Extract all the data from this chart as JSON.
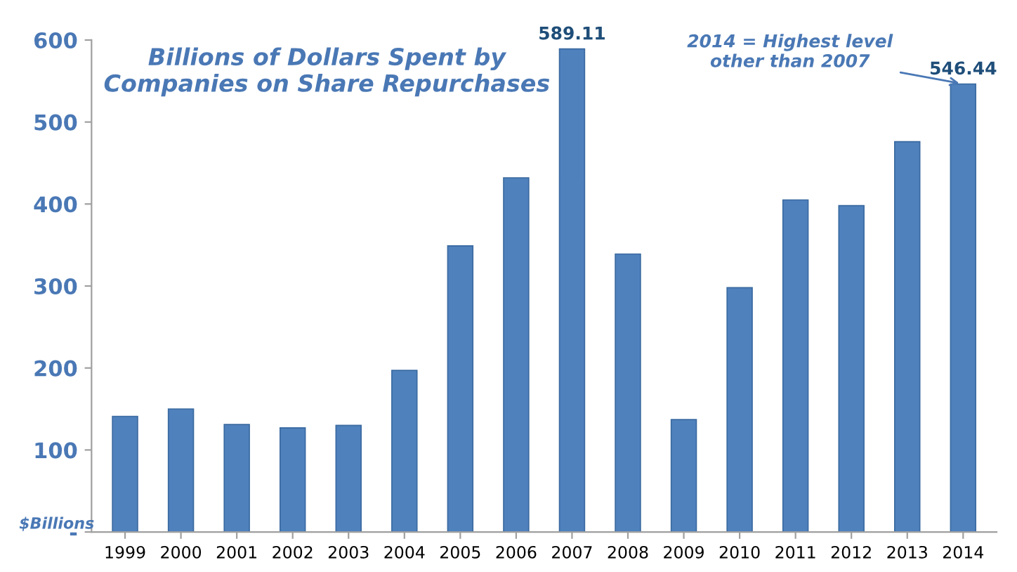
{
  "chart_data": {
    "type": "bar",
    "title": "Billions of Dollars Spent by\nCompanies on Share Repurchases",
    "ylabel": "$Billions",
    "categories": [
      "1999",
      "2000",
      "2001",
      "2002",
      "2003",
      "2004",
      "2005",
      "2006",
      "2007",
      "2008",
      "2009",
      "2010",
      "2011",
      "2012",
      "2013",
      "2014"
    ],
    "values": [
      141,
      150,
      131,
      127,
      130,
      197,
      349,
      432,
      589.11,
      339,
      137,
      298,
      405,
      398,
      476,
      546.44
    ],
    "value_labels": [
      null,
      null,
      null,
      null,
      null,
      null,
      null,
      null,
      "589.11",
      null,
      null,
      null,
      null,
      null,
      null,
      "546.44"
    ],
    "color": "#4f81bd",
    "ylim": [
      0,
      600
    ],
    "yticks": [
      {
        "value": 0,
        "label": "-"
      },
      100,
      200,
      300,
      400,
      500,
      600
    ],
    "grid": false,
    "legend": false,
    "annotations": [
      {
        "text": "2014 = Highest level\nother than 2007",
        "x": "2014",
        "y": 546.44
      }
    ]
  }
}
